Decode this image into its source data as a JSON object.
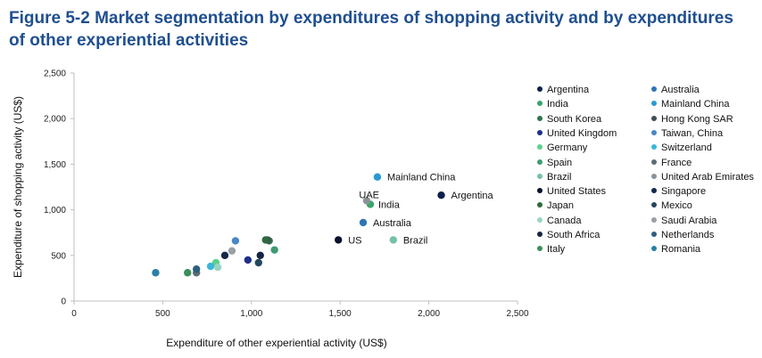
{
  "chart_data": {
    "type": "scatter",
    "title": "Figure 5-2 Market segmentation by expenditures of shopping activity and by expenditures of other experiential activities",
    "xlabel": "Expenditure of other experiential activity (US$)",
    "ylabel": "Expenditure of shopping activity (US$)",
    "xlim": [
      0,
      2500
    ],
    "ylim": [
      0,
      2500
    ],
    "xticks": [
      0,
      500,
      1000,
      1500,
      2000,
      2500
    ],
    "yticks": [
      0,
      500,
      1000,
      1500,
      2000,
      2500
    ],
    "xtick_labels": [
      "0",
      "500",
      "1,000",
      "1,500",
      "2,000",
      "2,500"
    ],
    "ytick_labels": [
      "0",
      "500",
      "1,000",
      "1,500",
      "2,000",
      "2,500"
    ],
    "grid": false,
    "legend_position": "right",
    "series": [
      {
        "name": "Argentina",
        "x": 2070,
        "y": 1160,
        "color": "#0d1f4c",
        "label": "Argentina"
      },
      {
        "name": "Australia",
        "x": 1630,
        "y": 860,
        "color": "#2e75b6",
        "label": "Australia"
      },
      {
        "name": "India",
        "x": 1670,
        "y": 1060,
        "color": "#3aa56b",
        "label": "India"
      },
      {
        "name": "Mainland China",
        "x": 1710,
        "y": 1360,
        "color": "#2b9ad0",
        "label": "Mainland China"
      },
      {
        "name": "South Korea",
        "x": 1100,
        "y": 660,
        "color": "#2e7550",
        "label": ""
      },
      {
        "name": "Hong Kong SAR",
        "x": 1090,
        "y": 670,
        "color": "#3f4f52",
        "label": ""
      },
      {
        "name": "United Kingdom",
        "x": 980,
        "y": 450,
        "color": "#1e2f8a",
        "label": ""
      },
      {
        "name": "Taiwan, China",
        "x": 910,
        "y": 660,
        "color": "#4a86c8",
        "label": ""
      },
      {
        "name": "Germany",
        "x": 800,
        "y": 420,
        "color": "#5cd18c",
        "label": ""
      },
      {
        "name": "Switzerland",
        "x": 770,
        "y": 380,
        "color": "#39b8d9",
        "label": ""
      },
      {
        "name": "Spain",
        "x": 1130,
        "y": 560,
        "color": "#3f9b72",
        "label": ""
      },
      {
        "name": "France",
        "x": 690,
        "y": 310,
        "color": "#5b6d73",
        "label": ""
      },
      {
        "name": "Brazil",
        "x": 1800,
        "y": 670,
        "color": "#74c2a4",
        "label": "Brazil"
      },
      {
        "name": "United Arab Emirates",
        "x": 1650,
        "y": 1100,
        "color": "#8a9399",
        "label": "UAE"
      },
      {
        "name": "United States",
        "x": 1490,
        "y": 670,
        "color": "#0a1230",
        "label": "US"
      },
      {
        "name": "Singapore",
        "x": 850,
        "y": 500,
        "color": "#14284a",
        "label": ""
      },
      {
        "name": "Japan",
        "x": 1080,
        "y": 670,
        "color": "#2e6b3c",
        "label": ""
      },
      {
        "name": "Mexico",
        "x": 1040,
        "y": 420,
        "color": "#22485e",
        "label": ""
      },
      {
        "name": "Canada",
        "x": 810,
        "y": 370,
        "color": "#9ad5c0",
        "label": ""
      },
      {
        "name": "Saudi Arabia",
        "x": 890,
        "y": 550,
        "color": "#9a9ea5",
        "label": ""
      },
      {
        "name": "South Africa",
        "x": 1050,
        "y": 500,
        "color": "#162544",
        "label": ""
      },
      {
        "name": "Netherlands",
        "x": 690,
        "y": 350,
        "color": "#2c5f80",
        "label": ""
      },
      {
        "name": "Italy",
        "x": 640,
        "y": 310,
        "color": "#3a8f5a",
        "label": ""
      },
      {
        "name": "Romania",
        "x": 460,
        "y": 310,
        "color": "#2b7fa6",
        "label": ""
      }
    ]
  }
}
